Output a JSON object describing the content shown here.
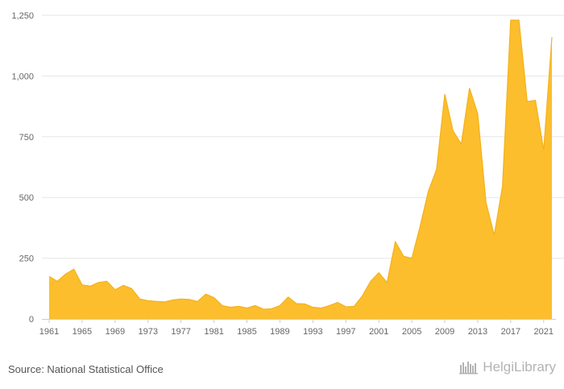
{
  "chart_data": {
    "type": "area",
    "title": "",
    "xlabel": "",
    "ylabel": "",
    "x": [
      1961,
      1962,
      1963,
      1964,
      1965,
      1966,
      1967,
      1968,
      1969,
      1970,
      1971,
      1972,
      1973,
      1974,
      1975,
      1976,
      1977,
      1978,
      1979,
      1980,
      1981,
      1982,
      1983,
      1984,
      1985,
      1986,
      1987,
      1988,
      1989,
      1990,
      1991,
      1992,
      1993,
      1994,
      1995,
      1996,
      1997,
      1998,
      1999,
      2000,
      2001,
      2002,
      2003,
      2004,
      2005,
      2006,
      2007,
      2008,
      2009,
      2010,
      2011,
      2012,
      2013,
      2014,
      2015,
      2016,
      2017,
      2018,
      2019,
      2020,
      2021,
      2022
    ],
    "series": [
      {
        "values": [
          175,
          155,
          185,
          205,
          140,
          135,
          150,
          155,
          120,
          138,
          125,
          82,
          75,
          72,
          70,
          78,
          82,
          80,
          72,
          102,
          88,
          55,
          48,
          52,
          45,
          55,
          40,
          42,
          55,
          90,
          63,
          62,
          48,
          45,
          55,
          68,
          50,
          52,
          95,
          155,
          190,
          150,
          318,
          258,
          250,
          380,
          525,
          615,
          925,
          775,
          720,
          950,
          845,
          480,
          345,
          545,
          1230,
          1230,
          895,
          900,
          695,
          1160
        ]
      }
    ],
    "x_ticks": [
      1961,
      1965,
      1969,
      1973,
      1977,
      1981,
      1985,
      1989,
      1993,
      1997,
      2001,
      2005,
      2009,
      2013,
      2017,
      2021
    ],
    "y_ticks": [
      0,
      250,
      500,
      750,
      1000,
      1250
    ],
    "y_tick_labels": [
      "0",
      "250",
      "500",
      "750",
      "1,000",
      "1,250"
    ],
    "ylim": [
      0,
      1250
    ],
    "xlim": [
      1961,
      2022
    ],
    "grid": "horizontal",
    "colors": {
      "area": "#FCBE2C",
      "line": "#F3B21B",
      "grid": "#e6e6e6",
      "axis": "#cccccc",
      "text": "#666666"
    }
  },
  "footer": {
    "source": "Source: National Statistical Office",
    "logo_text": "HelgiLibrary"
  }
}
